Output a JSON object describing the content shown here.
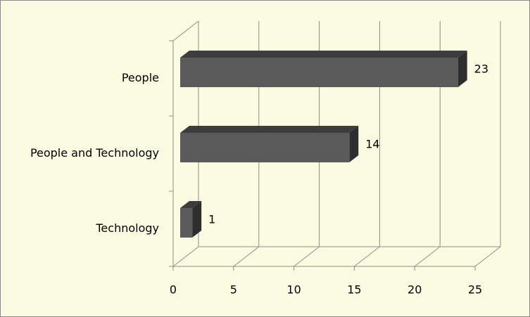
{
  "chart_data": {
    "type": "bar3d",
    "orientation": "horizontal",
    "categories": [
      "People",
      "People and Technology",
      "Technology"
    ],
    "values": [
      23,
      14,
      1
    ],
    "color": "#5a5a5a",
    "xlim": [
      0,
      25
    ],
    "xticks": [
      0,
      5,
      10,
      15,
      20,
      25
    ],
    "grid": true
  }
}
